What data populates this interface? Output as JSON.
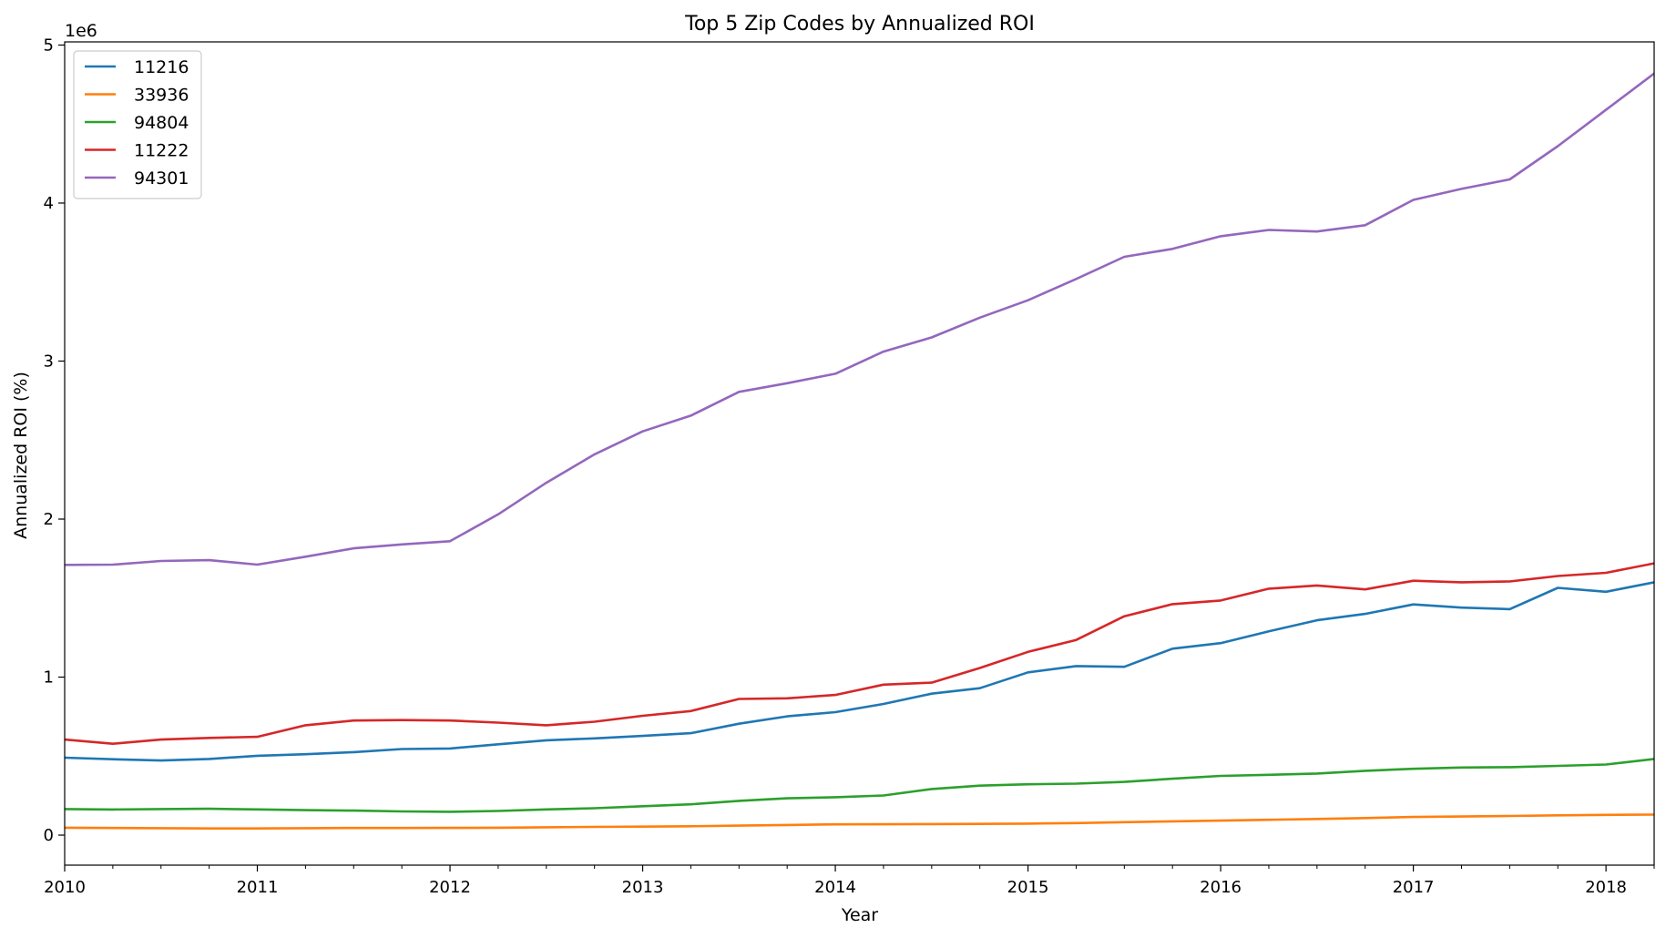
{
  "chart_data": {
    "type": "line",
    "title": "Top 5 Zip Codes by Annualized ROI",
    "xlabel": "Year",
    "ylabel": "Annualized ROI (%)",
    "y_multiplier_label": "1e6",
    "y_multiplier": 1000000,
    "xlim": [
      2010.0,
      2018.25
    ],
    "ylim": [
      -190000,
      5020000
    ],
    "x_ticks": [
      2010,
      2011,
      2012,
      2013,
      2014,
      2015,
      2016,
      2017,
      2018
    ],
    "x_tick_labels": [
      "2010",
      "2011",
      "2012",
      "2013",
      "2014",
      "2015",
      "2016",
      "2017",
      "2018"
    ],
    "y_ticks": [
      0,
      1000000,
      2000000,
      3000000,
      4000000,
      5000000
    ],
    "y_tick_labels": [
      "0",
      "1",
      "2",
      "3",
      "4",
      "5"
    ],
    "grid": false,
    "legend_position": "top-left",
    "x": [
      2010.0,
      2010.25,
      2010.5,
      2010.75,
      2011.0,
      2011.25,
      2011.5,
      2011.75,
      2012.0,
      2012.25,
      2012.5,
      2012.75,
      2013.0,
      2013.25,
      2013.5,
      2013.75,
      2014.0,
      2014.25,
      2014.5,
      2014.75,
      2015.0,
      2015.25,
      2015.5,
      2015.75,
      2016.0,
      2016.25,
      2016.5,
      2016.75,
      2017.0,
      2017.25,
      2017.5,
      2017.75,
      2018.0,
      2018.25
    ],
    "series": [
      {
        "name": "11216",
        "color": "#1f77b4",
        "values": [
          490000,
          480000,
          472000,
          482000,
          502000,
          512000,
          525000,
          545000,
          548000,
          575000,
          600000,
          612000,
          628000,
          645000,
          705000,
          752000,
          778000,
          830000,
          895000,
          930000,
          1030000,
          1070000,
          1065000,
          1180000,
          1215000,
          1290000,
          1360000,
          1400000,
          1460000,
          1440000,
          1430000,
          1565000,
          1540000,
          1600000
        ]
      },
      {
        "name": "33936",
        "color": "#ff7f0e",
        "values": [
          47000,
          45000,
          44000,
          42000,
          42000,
          44000,
          45000,
          45000,
          46000,
          47000,
          50000,
          52000,
          54000,
          56000,
          60000,
          64000,
          68000,
          69000,
          70000,
          71000,
          73000,
          76000,
          82000,
          87000,
          92000,
          97000,
          102000,
          108000,
          115000,
          118000,
          121000,
          125000,
          128000,
          130000
        ]
      },
      {
        "name": "94804",
        "color": "#2ca02c",
        "values": [
          165000,
          162000,
          165000,
          167000,
          163000,
          158000,
          155000,
          150000,
          148000,
          153000,
          163000,
          170000,
          183000,
          195000,
          217000,
          233000,
          240000,
          251000,
          292000,
          313000,
          322000,
          326000,
          337000,
          357000,
          375000,
          382000,
          390000,
          407000,
          420000,
          428000,
          430000,
          438000,
          447000,
          482000
        ]
      },
      {
        "name": "11222",
        "color": "#d62728",
        "values": [
          605000,
          578000,
          605000,
          615000,
          622000,
          695000,
          725000,
          728000,
          725000,
          712000,
          695000,
          718000,
          755000,
          785000,
          862000,
          866000,
          887000,
          952000,
          965000,
          1058000,
          1160000,
          1235000,
          1385000,
          1462000,
          1485000,
          1560000,
          1580000,
          1555000,
          1610000,
          1600000,
          1605000,
          1640000,
          1660000,
          1720000
        ]
      },
      {
        "name": "94301",
        "color": "#9467bd",
        "values": [
          1710000,
          1712000,
          1735000,
          1740000,
          1712000,
          1762000,
          1815000,
          1840000,
          1860000,
          2030000,
          2230000,
          2410000,
          2555000,
          2655000,
          2805000,
          2860000,
          2920000,
          3060000,
          3150000,
          3275000,
          3385000,
          3520000,
          3660000,
          3710000,
          3790000,
          3830000,
          3820000,
          3860000,
          4020000,
          4090000,
          4150000,
          4360000,
          4590000,
          4820000
        ]
      }
    ]
  }
}
